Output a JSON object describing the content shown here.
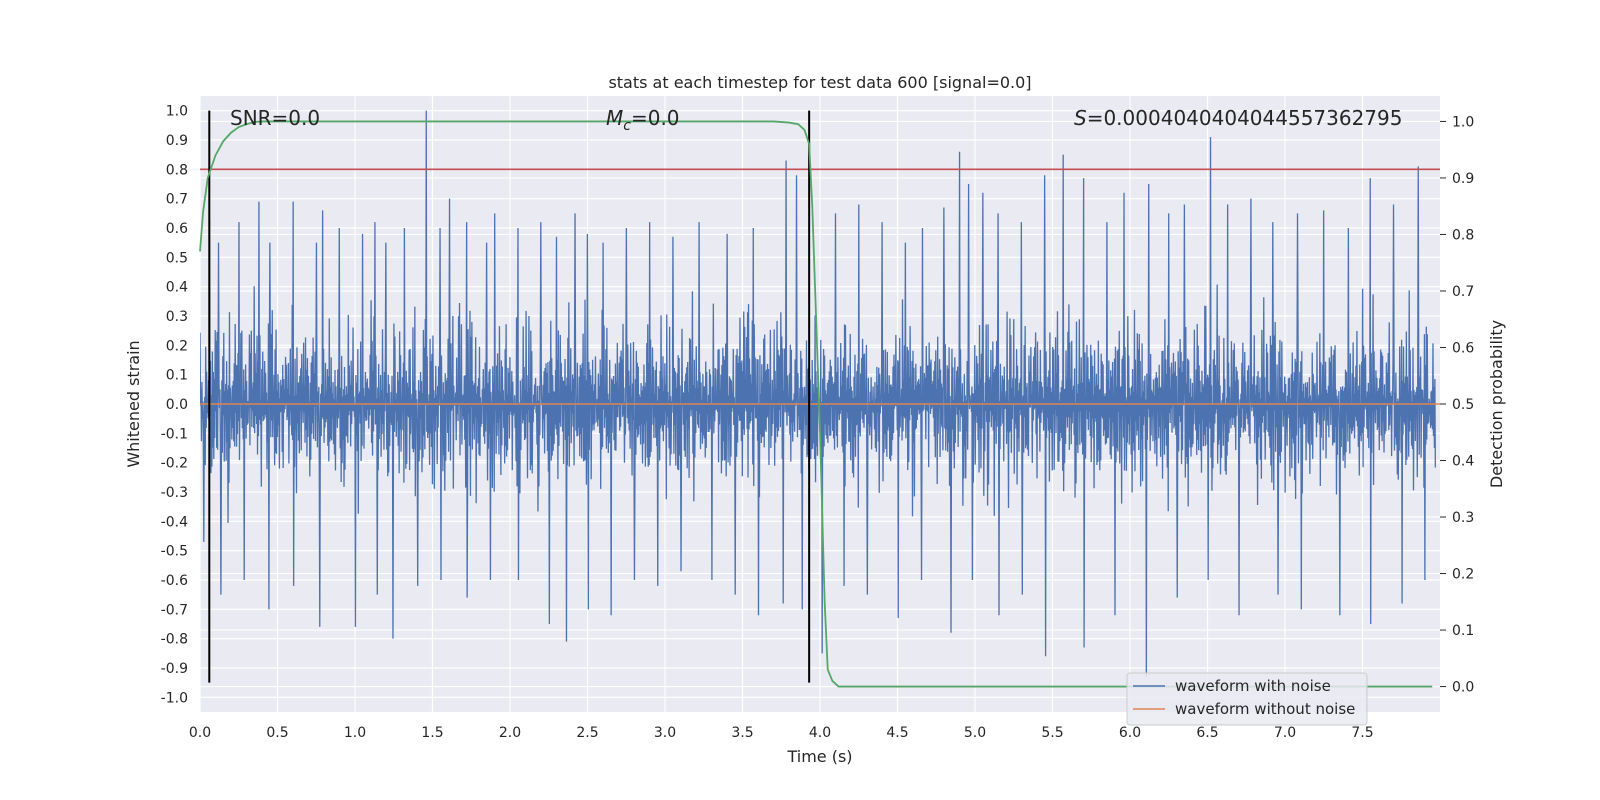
{
  "chart_data": {
    "type": "line",
    "title": "stats at each timestep for test data 600 [signal=0.0]",
    "xlabel": "Time (s)",
    "ylabel_left": "Whitened strain",
    "ylabel_right": "Detection probability",
    "xlim": [
      0.0,
      8.0
    ],
    "ylim_left": [
      -1.05,
      1.05
    ],
    "ylim_right": [
      -0.045,
      1.045
    ],
    "x_ticks": [
      "0.0",
      "0.5",
      "1.0",
      "1.5",
      "2.0",
      "2.5",
      "3.0",
      "3.5",
      "4.0",
      "4.5",
      "5.0",
      "5.5",
      "6.0",
      "6.5",
      "7.0",
      "7.5"
    ],
    "y_ticks_left": [
      "1.0",
      "0.9",
      "0.8",
      "0.7",
      "0.6",
      "0.5",
      "0.4",
      "0.3",
      "0.2",
      "0.1",
      "0.0",
      "-0.1",
      "-0.2",
      "-0.3",
      "-0.4",
      "-0.5",
      "-0.6",
      "-0.7",
      "-0.8",
      "-0.9",
      "-1.0"
    ],
    "y_ticks_right": [
      "1.0",
      "0.9",
      "0.8",
      "0.7",
      "0.6",
      "0.5",
      "0.4",
      "0.3",
      "0.2",
      "0.1",
      "0.0"
    ],
    "grid": true,
    "legend_position": "lower-right",
    "annotations": {
      "snr_text": "SNR=0.0",
      "mc_symbol": "M",
      "mc_subscript": "c",
      "mc_value": "=0.0",
      "s_symbol": "S",
      "s_value": "=0.0004040404044557362795"
    },
    "series": [
      {
        "name": "waveform with noise",
        "color": "#4c72b0",
        "description_type": "dense_noise",
        "typical_range": [
          -0.45,
          0.45
        ],
        "peaks_up": [
          [
            0.06,
            0.63
          ],
          [
            0.12,
            0.55
          ],
          [
            0.25,
            0.62
          ],
          [
            0.38,
            0.69
          ],
          [
            0.45,
            0.55
          ],
          [
            0.6,
            0.69
          ],
          [
            0.75,
            0.55
          ],
          [
            0.79,
            0.66
          ],
          [
            0.9,
            0.6
          ],
          [
            1.05,
            0.58
          ],
          [
            1.13,
            0.62
          ],
          [
            1.2,
            0.55
          ],
          [
            1.32,
            0.6
          ],
          [
            1.46,
            1.0
          ],
          [
            1.55,
            0.6
          ],
          [
            1.61,
            0.7
          ],
          [
            1.72,
            0.62
          ],
          [
            1.85,
            0.55
          ],
          [
            1.9,
            0.65
          ],
          [
            2.05,
            0.6
          ],
          [
            2.2,
            0.62
          ],
          [
            2.3,
            0.57
          ],
          [
            2.42,
            0.65
          ],
          [
            2.5,
            0.58
          ],
          [
            2.6,
            0.55
          ],
          [
            2.75,
            0.6
          ],
          [
            2.9,
            0.62
          ],
          [
            3.05,
            0.57
          ],
          [
            3.22,
            0.62
          ],
          [
            3.4,
            0.58
          ],
          [
            3.57,
            0.6
          ],
          [
            3.78,
            0.83
          ],
          [
            3.85,
            0.78
          ],
          [
            4.1,
            0.65
          ],
          [
            4.25,
            0.68
          ],
          [
            4.4,
            0.62
          ],
          [
            4.55,
            0.55
          ],
          [
            4.66,
            0.6
          ],
          [
            4.8,
            0.67
          ],
          [
            4.9,
            0.86
          ],
          [
            4.96,
            0.75
          ],
          [
            5.05,
            0.72
          ],
          [
            5.15,
            0.65
          ],
          [
            5.3,
            0.62
          ],
          [
            5.45,
            0.78
          ],
          [
            5.57,
            0.85
          ],
          [
            5.7,
            0.77
          ],
          [
            5.85,
            0.62
          ],
          [
            5.96,
            0.72
          ],
          [
            6.12,
            0.75
          ],
          [
            6.25,
            0.65
          ],
          [
            6.35,
            0.68
          ],
          [
            6.52,
            0.91
          ],
          [
            6.63,
            0.68
          ],
          [
            6.78,
            0.7
          ],
          [
            6.92,
            0.62
          ],
          [
            7.08,
            0.65
          ],
          [
            7.25,
            0.66
          ],
          [
            7.41,
            0.6
          ],
          [
            7.55,
            0.77
          ],
          [
            7.7,
            0.68
          ],
          [
            7.86,
            0.81
          ]
        ],
        "peaks_down": [
          [
            0.02,
            -0.47
          ],
          [
            0.13,
            -0.65
          ],
          [
            0.28,
            -0.6
          ],
          [
            0.44,
            -0.7
          ],
          [
            0.6,
            -0.62
          ],
          [
            0.77,
            -0.76
          ],
          [
            1.0,
            -0.76
          ],
          [
            1.14,
            -0.65
          ],
          [
            1.24,
            -0.8
          ],
          [
            1.4,
            -0.62
          ],
          [
            1.55,
            -0.6
          ],
          [
            1.72,
            -0.66
          ],
          [
            1.87,
            -0.6
          ],
          [
            2.05,
            -0.6
          ],
          [
            2.25,
            -0.75
          ],
          [
            2.36,
            -0.81
          ],
          [
            2.5,
            -0.7
          ],
          [
            2.65,
            -0.72
          ],
          [
            2.8,
            -0.6
          ],
          [
            2.95,
            -0.62
          ],
          [
            3.1,
            -0.57
          ],
          [
            3.3,
            -0.6
          ],
          [
            3.45,
            -0.65
          ],
          [
            3.6,
            -0.72
          ],
          [
            3.76,
            -0.68
          ],
          [
            3.88,
            -0.7
          ],
          [
            4.01,
            -0.85
          ],
          [
            4.15,
            -0.62
          ],
          [
            4.3,
            -0.65
          ],
          [
            4.5,
            -0.73
          ],
          [
            4.65,
            -0.6
          ],
          [
            4.84,
            -0.78
          ],
          [
            4.98,
            -0.6
          ],
          [
            5.15,
            -0.72
          ],
          [
            5.3,
            -0.65
          ],
          [
            5.45,
            -0.86
          ],
          [
            5.7,
            -0.83
          ],
          [
            5.9,
            -0.72
          ],
          [
            6.1,
            -0.93
          ],
          [
            6.3,
            -0.66
          ],
          [
            6.5,
            -0.6
          ],
          [
            6.7,
            -0.72
          ],
          [
            6.95,
            -0.65
          ],
          [
            7.1,
            -0.7
          ],
          [
            7.35,
            -0.72
          ],
          [
            7.55,
            -0.75
          ],
          [
            7.75,
            -0.68
          ],
          [
            7.9,
            -0.6
          ]
        ]
      },
      {
        "name": "waveform without noise",
        "color": "#dd8452",
        "x": [
          0.0,
          8.0
        ],
        "y": [
          0.0,
          0.0
        ]
      },
      {
        "name": "Detection probability",
        "axis": "right",
        "color": "#55a868",
        "x": [
          0.0,
          0.02,
          0.05,
          0.1,
          0.15,
          0.2,
          0.25,
          0.3,
          0.35,
          0.4,
          0.6,
          1.0,
          2.0,
          3.0,
          3.5,
          3.7,
          3.8,
          3.86,
          3.9,
          3.93,
          3.95,
          4.0,
          4.03,
          4.05,
          4.08,
          4.12,
          4.2,
          5.0,
          6.0,
          7.0,
          7.95
        ],
        "y": [
          0.77,
          0.84,
          0.9,
          0.94,
          0.965,
          0.98,
          0.99,
          0.995,
          0.999,
          1.0,
          1.0,
          1.0,
          1.0,
          1.0,
          1.0,
          1.0,
          0.998,
          0.995,
          0.985,
          0.96,
          0.85,
          0.45,
          0.15,
          0.03,
          0.01,
          0.0,
          0.0,
          0.0,
          0.0,
          0.0,
          0.0
        ]
      }
    ],
    "reference_lines": {
      "threshold_left_y": 0.8,
      "threshold_color": "#c44e52",
      "vertical_x": [
        0.06,
        3.93
      ],
      "vertical_color": "#000000",
      "vertical_ylim": [
        -0.95,
        1.0
      ]
    }
  }
}
